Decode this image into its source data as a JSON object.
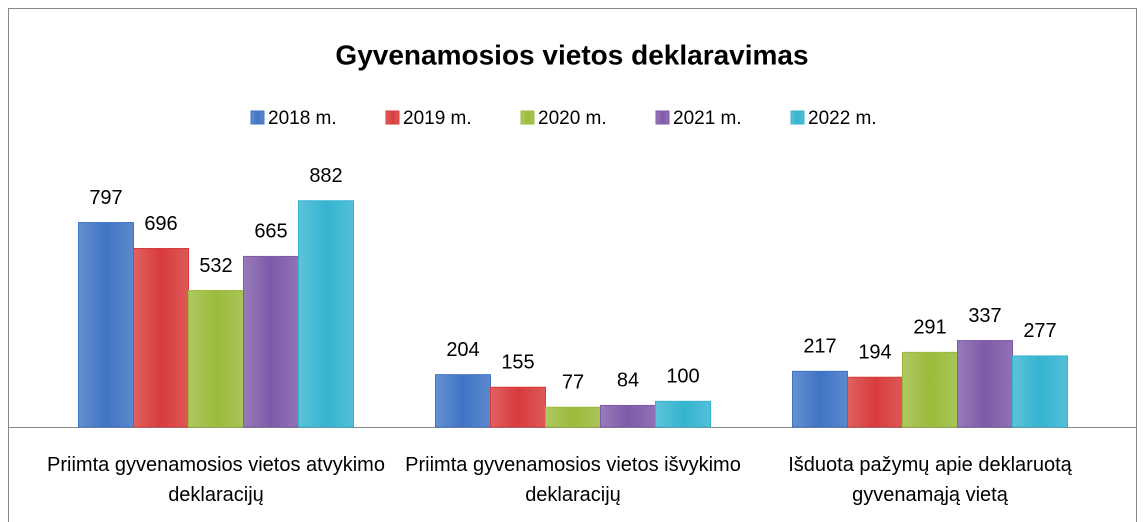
{
  "chart_data": {
    "type": "bar",
    "title": "Gyvenamosios vietos deklaravimas",
    "categories": [
      "Priimta gyvenamosios vietos atvykimo deklaracijų",
      "Priimta gyvenamosios vietos išvykimo deklaracijų",
      "Išduota pažymų apie deklaruotą gyvenamąją vietą"
    ],
    "series": [
      {
        "name": "2018 m.",
        "color": "#3f74c4",
        "values": [
          797,
          204,
          217
        ]
      },
      {
        "name": "2019 m.",
        "color": "#d83b3b",
        "values": [
          696,
          155,
          194
        ]
      },
      {
        "name": "2020 m.",
        "color": "#9bbb3b",
        "values": [
          532,
          77,
          291
        ]
      },
      {
        "name": "2021 m.",
        "color": "#7e5aa8",
        "values": [
          665,
          84,
          337
        ]
      },
      {
        "name": "2022 m.",
        "color": "#35b4d0",
        "values": [
          882,
          100,
          277
        ]
      }
    ],
    "legend": "top"
  }
}
